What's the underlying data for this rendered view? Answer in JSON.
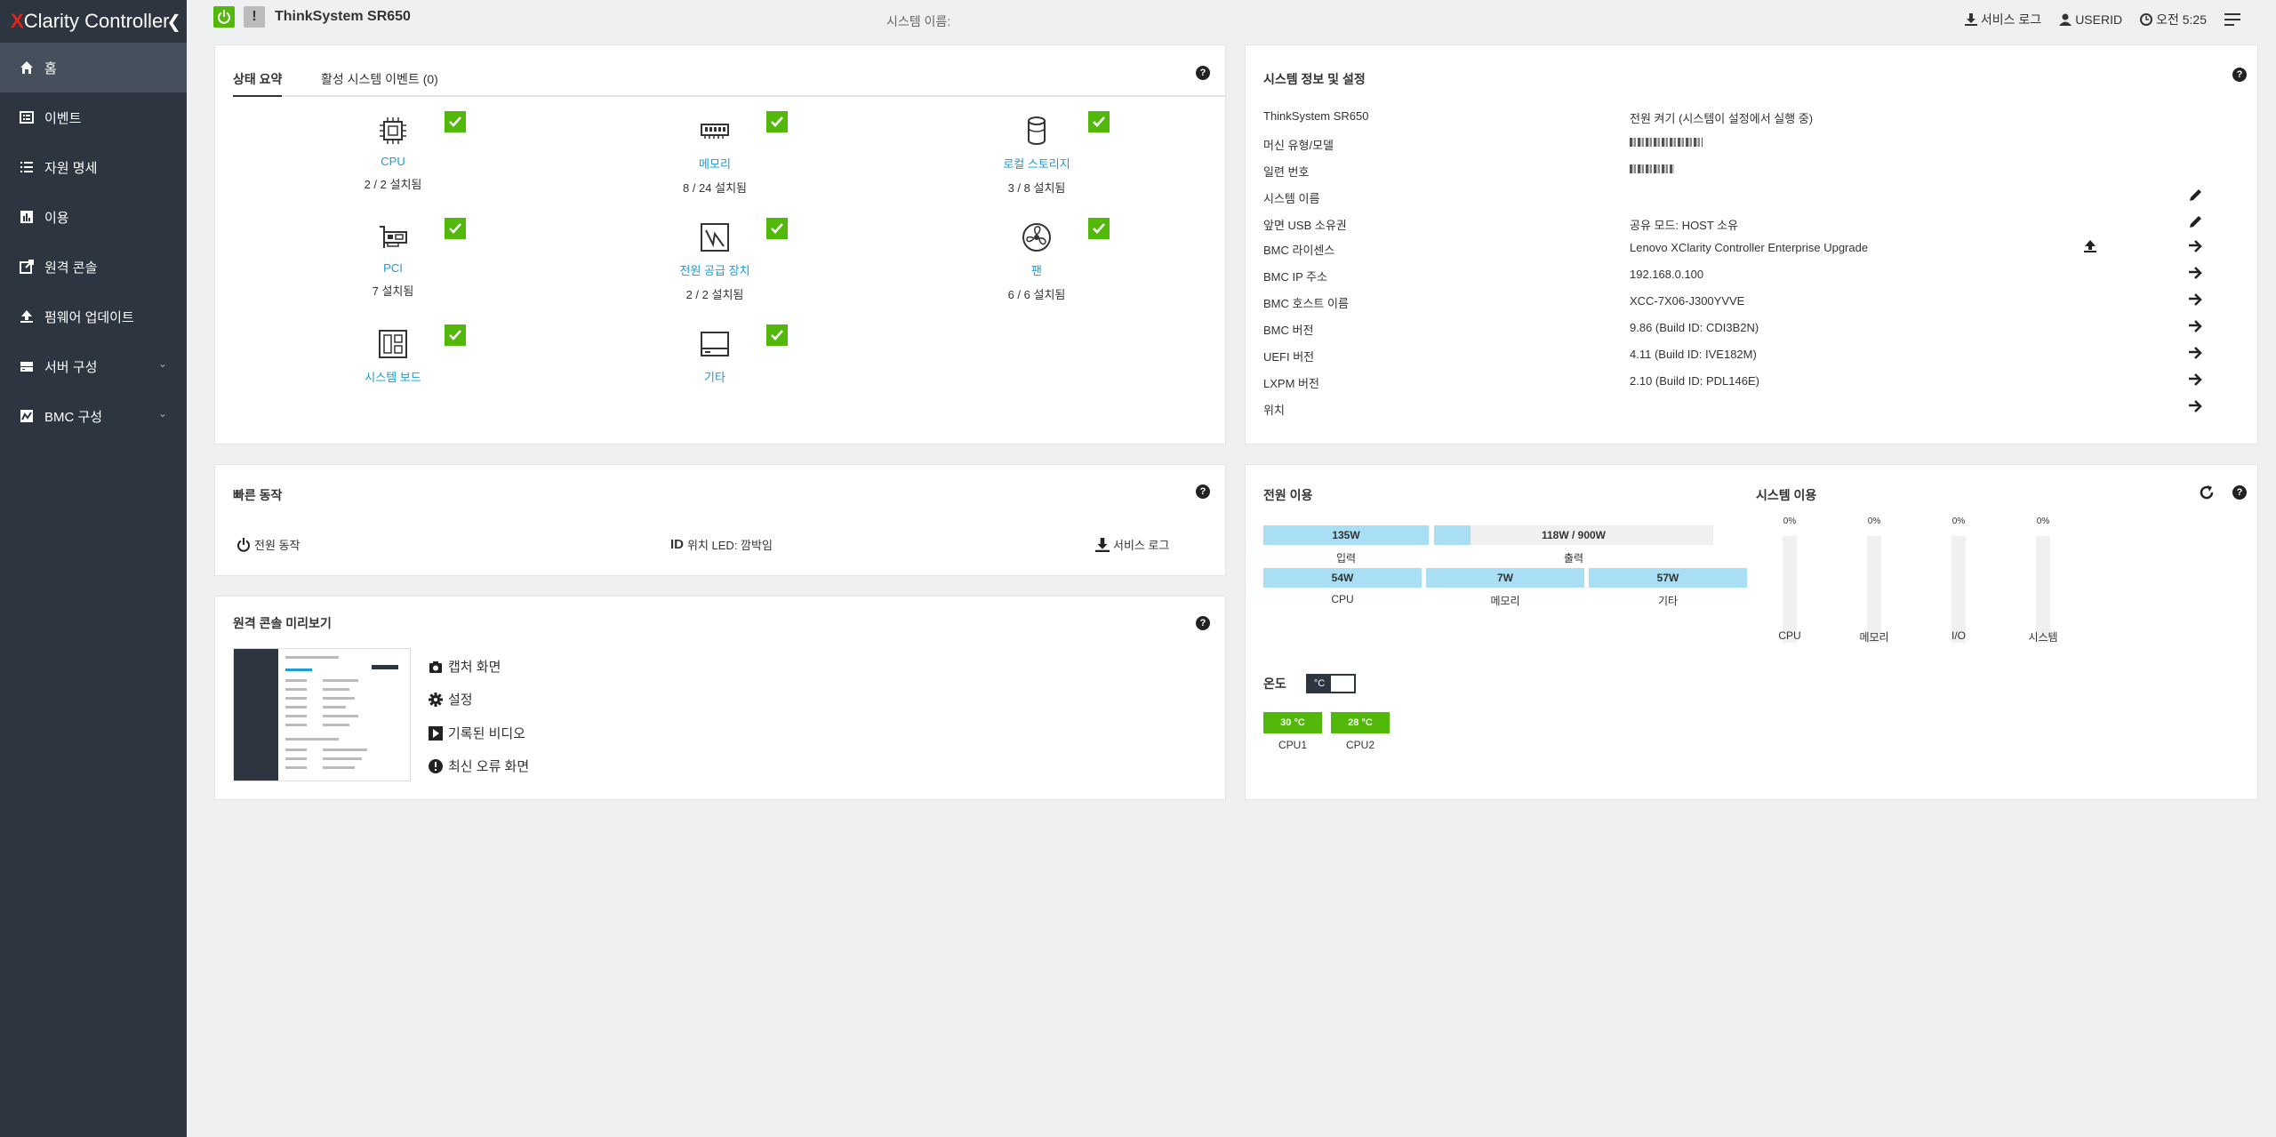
{
  "brand": {
    "x": "X",
    "rest": "Clarity Controller"
  },
  "nav": [
    {
      "label": "홈",
      "icon": "home-icon"
    },
    {
      "label": "이벤트",
      "icon": "events-icon"
    },
    {
      "label": "자원 명세",
      "icon": "inventory-icon"
    },
    {
      "label": "이용",
      "icon": "utilization-icon"
    },
    {
      "label": "원격 콘솔",
      "icon": "remote-console-icon"
    },
    {
      "label": "펌웨어 업데이트",
      "icon": "firmware-update-icon"
    },
    {
      "label": "서버 구성",
      "icon": "server-config-icon"
    },
    {
      "label": "BMC 구성",
      "icon": "bmc-config-icon"
    }
  ],
  "header": {
    "model": "ThinkSystem SR650",
    "system_name": "시스템 이름:",
    "service_log": "서비스 로그",
    "user": "USERID",
    "time": "오전 5:25",
    "warn": "!"
  },
  "status": {
    "tab_summary": "상태 요약",
    "tab_events": "활성 시스템 이벤트 (0)",
    "components": [
      {
        "name": "CPU",
        "count": "2 / 2 설치됨",
        "icon": "cpu-icon"
      },
      {
        "name": "메모리",
        "count": "8 / 24 설치됨",
        "icon": "memory-icon"
      },
      {
        "name": "로컬 스토리지",
        "count": "3 / 8 설치됨",
        "icon": "storage-icon"
      },
      {
        "name": "PCI",
        "count": "7 설치됨",
        "icon": "pci-icon"
      },
      {
        "name": "전원 공급 장치",
        "count": "2 / 2 설치됨",
        "icon": "power-supply-icon"
      },
      {
        "name": "팬",
        "count": "6 / 6 설치됨",
        "icon": "fan-icon"
      },
      {
        "name": "시스템 보드",
        "count": "",
        "icon": "system-board-icon"
      },
      {
        "name": "기타",
        "count": "",
        "icon": "other-icon"
      }
    ]
  },
  "sysinfo": {
    "title": "시스템 정보 및 설정",
    "rows": [
      {
        "label": "ThinkSystem SR650",
        "value": "전원 켜기 (시스템이 설정에서 실행 중)"
      },
      {
        "label": "머신 유형/모델",
        "value": ""
      },
      {
        "label": "일련 번호",
        "value": ""
      },
      {
        "label": "시스템 이름",
        "value": ""
      },
      {
        "label": "앞면 USB 소유권",
        "value": "공유 모드: HOST 소유"
      },
      {
        "label": "BMC 라이센스",
        "value": "Lenovo XClarity Controller Enterprise Upgrade"
      },
      {
        "label": "BMC IP 주소",
        "value": "192.168.0.100"
      },
      {
        "label": "BMC 호스트 이름",
        "value": "XCC-7X06-J300YVVE"
      },
      {
        "label": "BMC 버전",
        "value": "9.86 (Build ID: CDI3B2N)"
      },
      {
        "label": "UEFI 버전",
        "value": "4.11 (Build ID: IVE182M)"
      },
      {
        "label": "LXPM 버전",
        "value": "2.10 (Build ID: PDL146E)"
      },
      {
        "label": "위치",
        "value": ""
      }
    ]
  },
  "quick": {
    "title": "빠른 동작",
    "power": "전원 동작",
    "led": "위치 LED: 깜박임",
    "service_log": "서비스 로그"
  },
  "preview": {
    "title": "원격 콘솔 미리보기",
    "capture": "캡처 화면",
    "settings": "설정",
    "video": "기록된 비디오",
    "error": "최신 오류 화면"
  },
  "power": {
    "title": "전원 이용",
    "input": {
      "value": "135W",
      "label": "입력",
      "fraction": 1.0
    },
    "output": {
      "value": "118W / 900W",
      "label": "출력",
      "fraction": 0.131
    },
    "cpu": {
      "value": "54W",
      "label": "CPU",
      "fraction": 1.0
    },
    "memory": {
      "value": "7W",
      "label": "메모리",
      "fraction": 1.0
    },
    "other": {
      "value": "57W",
      "label": "기타",
      "fraction": 1.0
    }
  },
  "utilization": {
    "title": "시스템 이용",
    "items": [
      {
        "label": "CPU",
        "pct": "0%",
        "value": 0
      },
      {
        "label": "메모리",
        "pct": "0%",
        "value": 0
      },
      {
        "label": "I/O",
        "pct": "0%",
        "value": 0
      },
      {
        "label": "시스템",
        "pct": "0%",
        "value": 0
      }
    ]
  },
  "temperature": {
    "title": "온도",
    "unit": "°C",
    "sensors": [
      {
        "label": "CPU1",
        "value": "30 °C"
      },
      {
        "label": "CPU2",
        "value": "28 °C"
      }
    ]
  },
  "colors": {
    "accent": "#1a9ad6",
    "ok": "#52b90b",
    "sidebar": "#2d3540",
    "bar": "#a8dff4"
  }
}
